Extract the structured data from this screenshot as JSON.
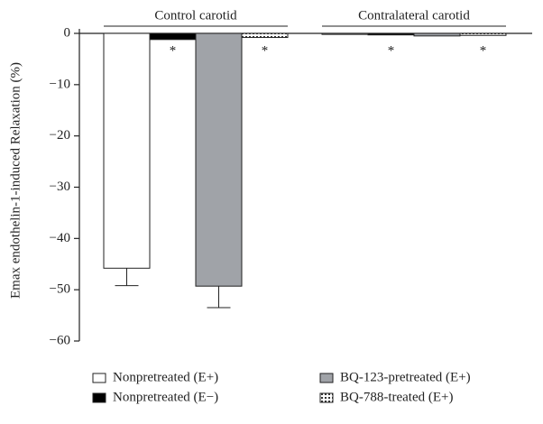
{
  "chart_data": {
    "type": "bar",
    "y_label": "Emax endothelin-1-induced Relaxation (%)",
    "categories": [
      "Control carotid",
      "Contralateral carotid"
    ],
    "series": [
      {
        "name": "Nonpretreated (E+)",
        "color": "#ffffff",
        "values": [
          -45.8,
          -0.2
        ],
        "errors": [
          3.4,
          null
        ]
      },
      {
        "name": "Nonpretreated (E−)",
        "color": "#000000",
        "values": [
          -1.2,
          -0.3
        ],
        "annotations": [
          "*",
          "*"
        ]
      },
      {
        "name": "BQ-123-pretreated (E+)",
        "color": "#a0a3a8",
        "values": [
          -49.3,
          -0.5
        ],
        "errors": [
          4.2,
          null
        ]
      },
      {
        "name": "BQ-788-treated (E+)",
        "color": "#ffffff",
        "pattern": "dotted",
        "values": [
          -0.8,
          -0.4
        ],
        "annotations": [
          "*",
          "*"
        ]
      }
    ],
    "ylim": [
      -60,
      0
    ],
    "yticks": [
      {
        "value": 0,
        "label": "0"
      },
      {
        "value": -10,
        "label": "−10"
      },
      {
        "value": -20,
        "label": "−20"
      },
      {
        "value": -30,
        "label": "−30"
      },
      {
        "value": -40,
        "label": "−40"
      },
      {
        "value": -50,
        "label": "−50"
      },
      {
        "value": -60,
        "label": "−60"
      }
    ]
  }
}
